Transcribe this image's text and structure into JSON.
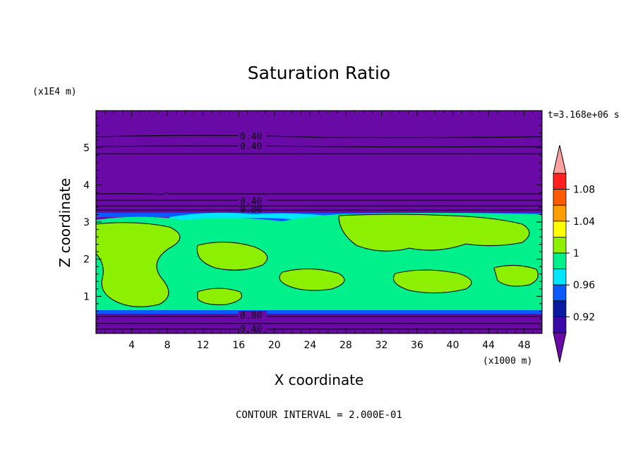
{
  "chart_data": {
    "type": "contour",
    "title": "Saturation Ratio",
    "xlabel": "X coordinate",
    "ylabel": "Z coordinate",
    "x_unit": "(x1000 m)",
    "y_unit": "(x1E4 m)",
    "time_label": "t=3.168e+06 s",
    "footer": "CONTOUR INTERVAL = 2.000E-01",
    "xlim": [
      0,
      50
    ],
    "ylim": [
      0,
      6
    ],
    "x_ticks": [
      "4",
      "8",
      "12",
      "16",
      "20",
      "24",
      "28",
      "32",
      "36",
      "40",
      "44",
      "48"
    ],
    "y_ticks": [
      "1",
      "2",
      "3",
      "4",
      "5"
    ],
    "contour_labels": [
      "0.40",
      "0.40",
      "0.40",
      "0.80",
      "0.80",
      "0.40"
    ],
    "colorbar": {
      "tick_labels": [
        "0.92",
        "0.96",
        "1",
        "1.04",
        "1.08"
      ],
      "colors": [
        "#6a0aa6",
        "#3a0aa8",
        "#0a1aa0",
        "#0a5aff",
        "#00e6ff",
        "#00f08c",
        "#8cf000",
        "#ffff00",
        "#ffa000",
        "#ff5a00",
        "#ff2020",
        "#ffa0a0"
      ]
    },
    "colors": {
      "background_field": "#6a0aa6",
      "near_saturation": "#00f08c",
      "supersaturated": "#8cf000"
    }
  }
}
